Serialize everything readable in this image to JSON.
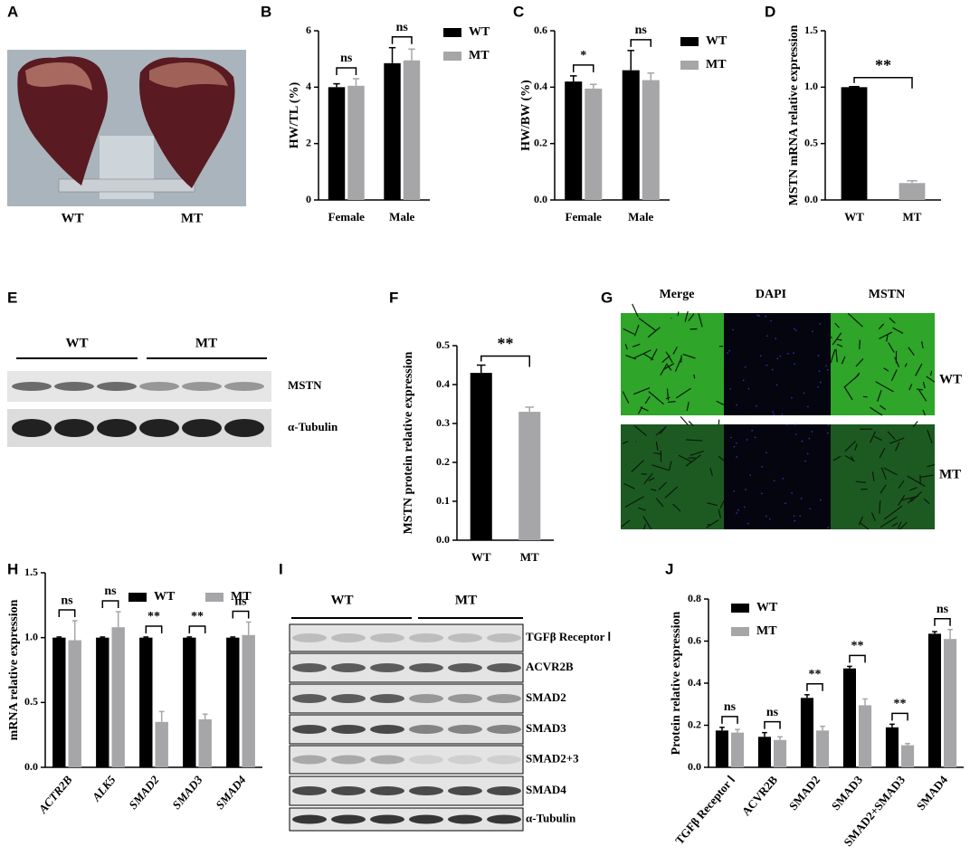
{
  "figure": {
    "panels": [
      "A",
      "B",
      "C",
      "D",
      "E",
      "F",
      "G",
      "H",
      "I",
      "J"
    ],
    "photo": {
      "labels": [
        "WT",
        "MT"
      ]
    },
    "western_e": {
      "groups": [
        "WT",
        "MT"
      ],
      "bands": [
        "MSTN",
        "α-Tubulin"
      ]
    },
    "immunofluorescence": {
      "columns": [
        "Merge",
        "DAPI",
        "MSTN"
      ],
      "rows": [
        "WT",
        "MT"
      ]
    },
    "western_i": {
      "groups": [
        "WT",
        "MT"
      ],
      "bands": [
        "TGFβ Receptor Ⅰ",
        "ACVR2B",
        "SMAD2",
        "SMAD3",
        "SMAD2+3",
        "SMAD4",
        "α-Tubulin"
      ]
    }
  },
  "chart_data": [
    {
      "type": "bar",
      "ylabel": "HW/TL (%)",
      "categories": [
        "Female",
        "Male"
      ],
      "series": [
        {
          "name": "WT",
          "color": "#000000",
          "values": [
            4.0,
            4.85
          ],
          "errors": [
            0.12,
            0.55
          ]
        },
        {
          "name": "MT",
          "color": "#a6a6a8",
          "values": [
            4.05,
            4.95
          ],
          "errors": [
            0.25,
            0.4
          ]
        }
      ],
      "annotations": [
        "ns",
        "ns"
      ],
      "ylim": [
        0,
        6
      ],
      "yticks": [
        0,
        2,
        4,
        6
      ],
      "legend": "upper right"
    },
    {
      "type": "bar",
      "ylabel": "HW/BW (%)",
      "categories": [
        "Female",
        "Male"
      ],
      "series": [
        {
          "name": "WT",
          "color": "#000000",
          "values": [
            0.42,
            0.46
          ],
          "errors": [
            0.02,
            0.07
          ]
        },
        {
          "name": "MT",
          "color": "#a6a6a8",
          "values": [
            0.395,
            0.425
          ],
          "errors": [
            0.015,
            0.025
          ]
        }
      ],
      "annotations": [
        "*",
        "ns"
      ],
      "ylim": [
        0,
        0.6
      ],
      "yticks": [
        {
          "value": 0,
          "label": "0.0"
        },
        0.2,
        0.4,
        0.6
      ],
      "legend": "upper right"
    },
    {
      "type": "bar",
      "ylabel": "MSTN mRNA relative expression",
      "categories": [
        "WT",
        "MT"
      ],
      "values": [
        1.0,
        0.15
      ],
      "errors": [
        0.005,
        0.02
      ],
      "colors": [
        "#000000",
        "#a6a6a8"
      ],
      "annotation": "**",
      "ylim": [
        0,
        1.5
      ],
      "yticks": [
        {
          "value": 0,
          "label": "0.0"
        },
        0.5,
        {
          "value": 1,
          "label": "1.0"
        },
        1.5
      ]
    },
    {
      "type": "bar",
      "ylabel": "MSTN protein relative expression",
      "categories": [
        "WT",
        "MT"
      ],
      "values": [
        0.43,
        0.33
      ],
      "errors": [
        0.02,
        0.012
      ],
      "colors": [
        "#000000",
        "#a6a6a8"
      ],
      "annotation": "**",
      "ylim": [
        0,
        0.5
      ],
      "yticks": [
        {
          "value": 0,
          "label": "0.0"
        },
        0.1,
        0.2,
        0.3,
        0.4,
        0.5
      ]
    },
    {
      "type": "bar",
      "ylabel": "mRNA relative expression",
      "categories": [
        "ACTR2B",
        "ALK5",
        "SMAD2",
        "SMAD3",
        "SMAD4"
      ],
      "series": [
        {
          "name": "WT",
          "color": "#000000",
          "values": [
            1,
            1,
            1,
            1,
            1
          ],
          "errors": [
            0.005,
            0.005,
            0.005,
            0.005,
            0.005
          ]
        },
        {
          "name": "MT",
          "color": "#a6a6a8",
          "values": [
            0.98,
            1.08,
            0.35,
            0.37,
            1.02
          ],
          "errors": [
            0.15,
            0.12,
            0.08,
            0.04,
            0.1
          ]
        }
      ],
      "annotations": [
        "ns",
        "ns",
        "**",
        "**",
        "ns"
      ],
      "ylim": [
        0,
        1.5
      ],
      "yticks": [
        {
          "value": 0,
          "label": "0.0"
        },
        0.5,
        {
          "value": 1,
          "label": "1.0"
        },
        1.5
      ],
      "legend": "top"
    },
    {
      "type": "bar",
      "ylabel": "Protein relative expression",
      "categories": [
        "TGFβ Receptor Ⅰ",
        "ACVR2B",
        "SMAD2",
        "SMAD3",
        "SMAD2+SMAD3",
        "SMAD4"
      ],
      "series": [
        {
          "name": "WT",
          "color": "#000000",
          "values": [
            0.175,
            0.145,
            0.33,
            0.47,
            0.19,
            0.635
          ],
          "errors": [
            0.015,
            0.02,
            0.015,
            0.01,
            0.015,
            0.01
          ]
        },
        {
          "name": "MT",
          "color": "#a6a6a8",
          "values": [
            0.165,
            0.13,
            0.175,
            0.295,
            0.105,
            0.61
          ],
          "errors": [
            0.015,
            0.015,
            0.02,
            0.03,
            0.008,
            0.045
          ]
        }
      ],
      "annotations": [
        "ns",
        "ns",
        "**",
        "**",
        "**",
        "ns"
      ],
      "ylim": [
        0,
        0.8
      ],
      "yticks": [
        {
          "value": 0,
          "label": "0.0"
        },
        0.2,
        0.4,
        0.6,
        0.8
      ],
      "legend": "upper left"
    }
  ]
}
